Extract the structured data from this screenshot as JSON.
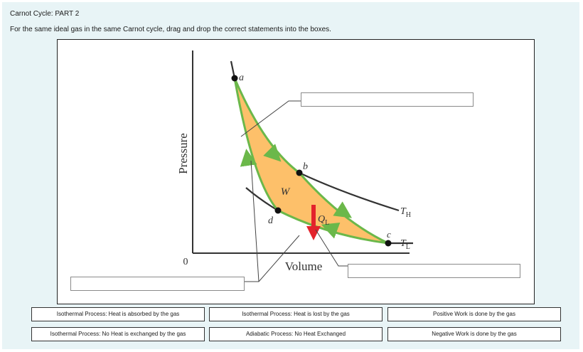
{
  "header": {
    "title": "Carnot Cycle: PART 2",
    "instructions": "For the same ideal gas in the same Carnot cycle, drag and drop the correct statements into the boxes."
  },
  "diagram": {
    "y_axis_label": "Pressure",
    "x_axis_label": "Volume",
    "origin_label": "0",
    "work_label": "W",
    "heat_label": "Q",
    "heat_subscript": "L",
    "temp_high_label": "T",
    "temp_high_subscript": "H",
    "temp_low_label": "T",
    "temp_low_subscript": "L",
    "points": {
      "a": "a",
      "b": "b",
      "c": "c",
      "d": "d"
    },
    "colors": {
      "cycle_fill": "#fdc06a",
      "cycle_stroke": "#6bb84a",
      "arrow_red": "#e3232c",
      "curve": "#333333"
    }
  },
  "options": [
    "Isothermal Process: Heat is absorbed by the gas",
    "Isothermal Process: Heat is lost by the gas",
    "Positive Work is done by the gas",
    "Isothermal Process: No Heat is exchanged by the gas",
    "Adiabatic Process: No Heat Exchanged",
    "Negative Work is done by the gas"
  ]
}
